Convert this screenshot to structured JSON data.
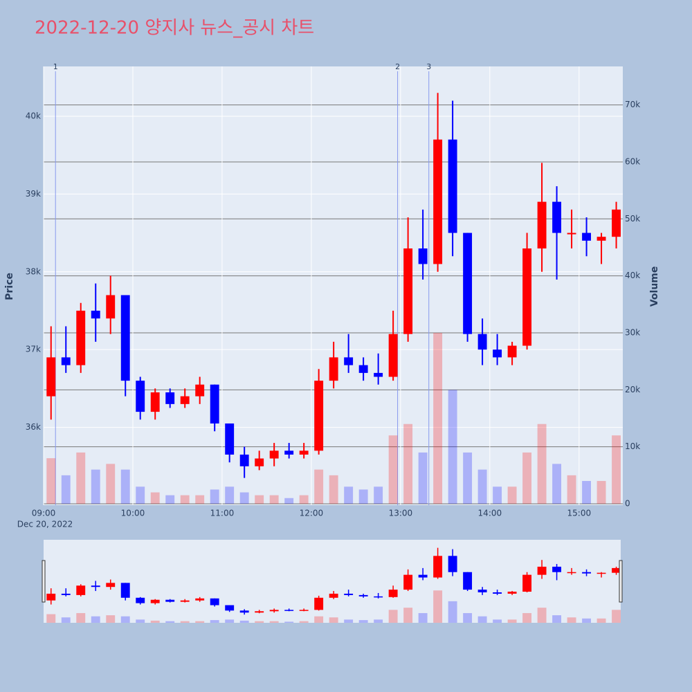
{
  "chart_data": {
    "type": "candlestick",
    "title": "2022-12-20 양지사 뉴스_공시 차트",
    "x_date_label": "Dec 20, 2022",
    "y_label": "Price",
    "y2_label": "Volume",
    "up_color": "#ff0000",
    "down_color": "#0000ff",
    "x": [
      "09:00",
      "09:10",
      "09:20",
      "09:30",
      "09:40",
      "09:50",
      "10:00",
      "10:10",
      "10:20",
      "10:30",
      "10:40",
      "10:50",
      "11:00",
      "11:10",
      "11:20",
      "11:30",
      "11:40",
      "11:50",
      "12:00",
      "12:10",
      "12:20",
      "12:30",
      "12:40",
      "12:50",
      "13:00",
      "13:10",
      "13:20",
      "13:30",
      "13:40",
      "13:50",
      "14:00",
      "14:10",
      "14:20",
      "14:30",
      "14:40",
      "14:50",
      "15:00",
      "15:10",
      "15:20"
    ],
    "open": [
      36400,
      36900,
      36800,
      37500,
      37400,
      37700,
      36600,
      36200,
      36450,
      36300,
      36400,
      36550,
      36050,
      35650,
      35500,
      35600,
      35700,
      35650,
      35700,
      36600,
      36900,
      36800,
      36700,
      36650,
      37200,
      38300,
      38100,
      39700,
      38500,
      37200,
      37000,
      36900,
      37050,
      38300,
      38900,
      38500,
      38500,
      38400,
      38450
    ],
    "high": [
      37300,
      37300,
      37600,
      37850,
      37950,
      37700,
      36650,
      36500,
      36500,
      36500,
      36650,
      36550,
      36050,
      35750,
      35700,
      35800,
      35800,
      35800,
      36750,
      37100,
      37200,
      36900,
      36950,
      37500,
      38700,
      38800,
      40300,
      40200,
      38500,
      37400,
      37200,
      37100,
      38500,
      39400,
      39100,
      38800,
      38700,
      38500,
      38900
    ],
    "low": [
      36100,
      36700,
      36700,
      37100,
      37200,
      36400,
      36100,
      36100,
      36250,
      36250,
      36300,
      35950,
      35550,
      35350,
      35450,
      35500,
      35600,
      35600,
      35650,
      36500,
      36700,
      36600,
      36550,
      36600,
      37100,
      37900,
      38000,
      38200,
      37100,
      36800,
      36800,
      36800,
      37000,
      38000,
      37900,
      38300,
      38200,
      38100,
      38300
    ],
    "close": [
      36900,
      36800,
      37500,
      37400,
      37700,
      36600,
      36200,
      36450,
      36300,
      36400,
      36550,
      36050,
      35650,
      35500,
      35600,
      35700,
      35650,
      35700,
      36600,
      36900,
      36800,
      36700,
      36650,
      37200,
      38300,
      38100,
      39700,
      38500,
      37200,
      37000,
      36900,
      37050,
      38300,
      38900,
      38500,
      38500,
      38400,
      38450,
      38800
    ],
    "volume": [
      8000,
      5000,
      9000,
      6000,
      7000,
      6000,
      3000,
      2000,
      1500,
      1500,
      1500,
      2500,
      3000,
      2000,
      1500,
      1500,
      1000,
      1500,
      6000,
      5000,
      3000,
      2500,
      3000,
      12000,
      14000,
      9000,
      30000,
      20000,
      9000,
      6000,
      3000,
      3000,
      9000,
      14000,
      7000,
      5000,
      4000,
      4000,
      12000
    ],
    "xlim": [
      "09:00",
      "15:28"
    ],
    "xticks": [
      "09:00",
      "10:00",
      "11:00",
      "12:00",
      "13:00",
      "14:00",
      "15:00"
    ],
    "ylim": [
      35000,
      40640
    ],
    "yticks": [
      {
        "value": 36000,
        "label": "36k"
      },
      {
        "value": 37000,
        "label": "37k"
      },
      {
        "value": 38000,
        "label": "38k"
      },
      {
        "value": 39000,
        "label": "39k"
      },
      {
        "value": 40000,
        "label": "40k"
      }
    ],
    "y2lim": [
      0,
      77000
    ],
    "y2ticks": [
      0,
      {
        "value": 10000,
        "label": "10k"
      },
      {
        "value": 20000,
        "label": "20k"
      },
      {
        "value": 30000,
        "label": "30k"
      },
      {
        "value": 40000,
        "label": "40k"
      },
      {
        "value": 50000,
        "label": "50k"
      },
      {
        "value": 60000,
        "label": "60k"
      },
      {
        "value": 70000,
        "label": "70k"
      }
    ],
    "annotations": [
      {
        "x": "09:08",
        "text": "1"
      },
      {
        "x": "12:58",
        "text": "2"
      },
      {
        "x": "13:19",
        "text": "3"
      }
    ]
  }
}
